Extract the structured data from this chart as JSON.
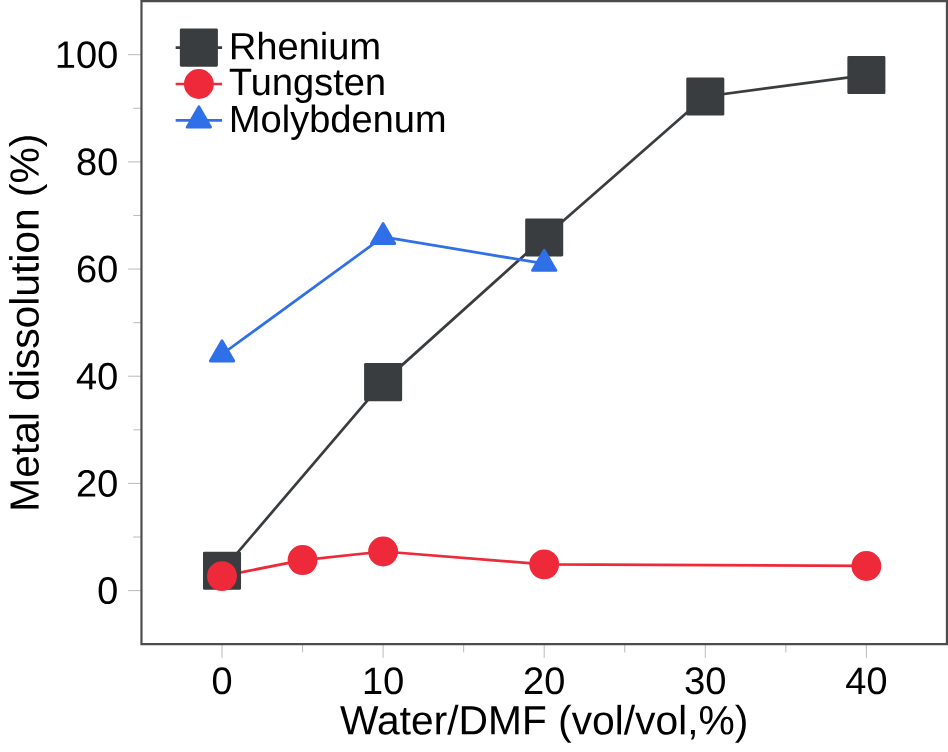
{
  "chart_data": {
    "type": "line",
    "xlabel": "Water/DMF (vol/vol,%)",
    "ylabel": "Metal dissolution (%)",
    "xlim": [
      -5,
      45
    ],
    "ylim": [
      -10,
      110
    ],
    "xticks": [
      0,
      10,
      20,
      30,
      40
    ],
    "yticks": [
      0,
      20,
      40,
      60,
      80,
      100
    ],
    "legend": "top left",
    "grid": false,
    "line_style": "solid",
    "series": [
      {
        "name": "Rhenium",
        "color": "#3a3d3f",
        "marker": "square",
        "x": [
          0,
          10,
          20,
          30,
          40
        ],
        "values": [
          3.7,
          38.9,
          65.9,
          92.2,
          96.2
        ]
      },
      {
        "name": "Tungsten",
        "color": "#ee2a3a",
        "marker": "circle",
        "x": [
          0,
          5,
          10,
          20,
          40
        ],
        "values": [
          2.7,
          5.7,
          7.3,
          4.9,
          4.6
        ]
      },
      {
        "name": "Molybdenum",
        "color": "#2f6fe8",
        "marker": "triangle",
        "x": [
          0,
          10,
          20
        ],
        "values": [
          44.1,
          66.0,
          61.0
        ]
      }
    ]
  }
}
